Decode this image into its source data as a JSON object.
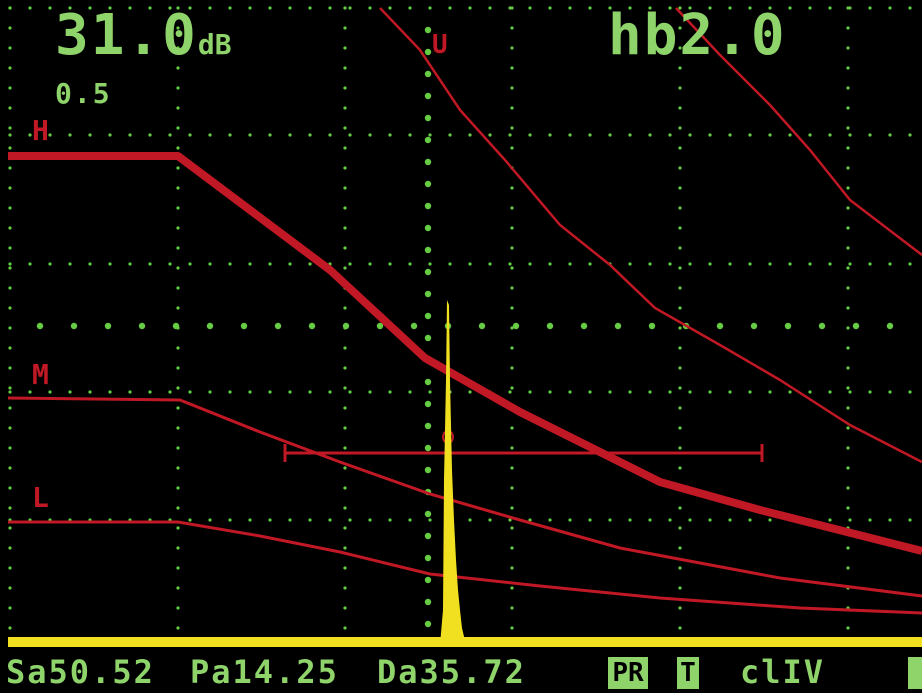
{
  "header": {
    "gain_value": "31.0",
    "gain_unit": "dB",
    "gain_step": "0.5",
    "mode": "hb2.0"
  },
  "markers": {
    "u": "U",
    "h": "H",
    "m": "M",
    "l": "L"
  },
  "status": {
    "sa": "Sa50.52",
    "pa": "Pa14.25",
    "da": "Da35.72",
    "pr": "PR",
    "t": "T",
    "class": "clIV"
  },
  "colors": {
    "background": "#000000",
    "grid": "#66cc44",
    "text": "#8ed46b",
    "curve": "#c01824",
    "signal": "#f0e020"
  }
}
